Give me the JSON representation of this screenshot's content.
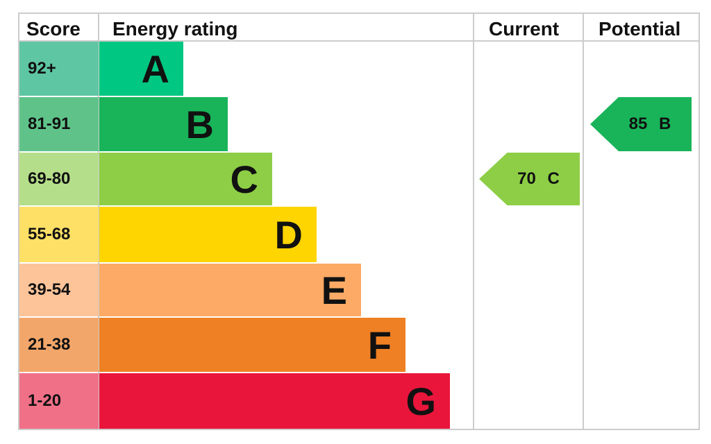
{
  "chart_data": {
    "type": "table",
    "headers": [
      "Score",
      "Energy rating",
      "Current",
      "Potential"
    ],
    "bands": [
      {
        "score": "92+",
        "letter": "A",
        "color": "#00c781",
        "score_color": "#5ec6a3"
      },
      {
        "score": "81-91",
        "letter": "B",
        "color": "#19b459",
        "score_color": "#5fc389"
      },
      {
        "score": "69-80",
        "letter": "C",
        "color": "#8dce46",
        "score_color": "#b5de8a"
      },
      {
        "score": "55-68",
        "letter": "D",
        "color": "#ffd500",
        "score_color": "#ffe066"
      },
      {
        "score": "39-54",
        "letter": "E",
        "color": "#fcaa65",
        "score_color": "#fdc49a"
      },
      {
        "score": "21-38",
        "letter": "F",
        "color": "#ef8023",
        "score_color": "#f3a66a"
      },
      {
        "score": "1-20",
        "letter": "G",
        "color": "#e9153b",
        "score_color": "#f07088"
      }
    ],
    "current": {
      "label": "70 C",
      "value": 70,
      "band": "C"
    },
    "potential": {
      "label": "85 B",
      "value": 85,
      "band": "B"
    }
  }
}
